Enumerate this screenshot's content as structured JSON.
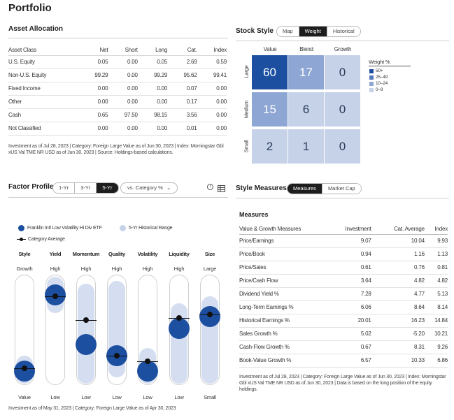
{
  "page_title": "Portfolio",
  "asset_allocation": {
    "title": "Asset Allocation",
    "headers": [
      "Asset Class",
      "Net",
      "Short",
      "Long",
      "Cat.",
      "Index"
    ],
    "rows": [
      [
        "U.S. Equity",
        "0.05",
        "0.00",
        "0.05",
        "2.69",
        "0.59"
      ],
      [
        "Non-U.S. Equity",
        "99.29",
        "0.00",
        "99.29",
        "95.62",
        "99.41"
      ],
      [
        "Fixed Income",
        "0.00",
        "0.00",
        "0.00",
        "0.07",
        "0.00"
      ],
      [
        "Other",
        "0.00",
        "0.00",
        "0.00",
        "0.17",
        "0.00"
      ],
      [
        "Cash",
        "0.65",
        "97.50",
        "98.15",
        "3.56",
        "0.00"
      ],
      [
        "Not Classified",
        "0.00",
        "0.00",
        "0.00",
        "0.01",
        "0.00"
      ]
    ],
    "footnote": "Investment as of Jul 28, 2023 | Category: Foreign Large Value as of Jun 30, 2023 | Index: Morningstar Gbl xUS Val TME NR USD as of Jun 30, 2023 | Source: Holdings-based calculations."
  },
  "stock_style": {
    "title": "Stock Style",
    "tabs": [
      "Map",
      "Weight",
      "Historical"
    ],
    "active_tab": "Weight",
    "columns": [
      "Value",
      "Blend",
      "Growth"
    ],
    "rows": [
      "Large",
      "Medium",
      "Small"
    ],
    "values": [
      [
        "60",
        "17",
        "0"
      ],
      [
        "15",
        "6",
        "0"
      ],
      [
        "2",
        "1",
        "0"
      ]
    ],
    "legend_title": "Weight %",
    "legend": [
      {
        "label": "50+",
        "color": "#1d4fa0"
      },
      {
        "label": "25–49",
        "color": "#5679bc"
      },
      {
        "label": "10–24",
        "color": "#8ea6d3"
      },
      {
        "label": "0–9",
        "color": "#c5d2e8"
      }
    ],
    "cell_colors": [
      [
        "#1d4fa0",
        "#8ea6d3",
        "#c5d2e8"
      ],
      [
        "#8ea6d3",
        "#c5d2e8",
        "#c5d2e8"
      ],
      [
        "#c5d2e8",
        "#c5d2e8",
        "#c5d2e8"
      ]
    ]
  },
  "factor_profile": {
    "title": "Factor Profile",
    "periods": [
      "1-Yr",
      "3-Yr",
      "5-Yr"
    ],
    "active_period": "5-Yr",
    "comparison": "vs. Category %",
    "legend": {
      "fund": "Franklin Intl Low Volatility Hi Div ETF",
      "range": "5-Yr Historical Range",
      "category": "Category Average"
    },
    "factors": [
      {
        "name": "Style",
        "top": "Growth",
        "bottom": "Value",
        "fund": 0.05,
        "cat": 0.08,
        "range": [
          0.0,
          0.12
        ]
      },
      {
        "name": "Yield",
        "top": "High",
        "bottom": "Low",
        "fund": 0.9,
        "cat": 0.88,
        "range": [
          0.8,
          1.0
        ]
      },
      {
        "name": "Momentum",
        "top": "High",
        "bottom": "Low",
        "fund": 0.34,
        "cat": 0.62,
        "range": [
          0.0,
          0.92
        ]
      },
      {
        "name": "Quality",
        "top": "High",
        "bottom": "Low",
        "fund": 0.22,
        "cat": 0.22,
        "range": [
          0.08,
          0.95
        ]
      },
      {
        "name": "Volatility",
        "top": "High",
        "bottom": "Low",
        "fund": 0.05,
        "cat": 0.16,
        "range": [
          0.0,
          0.2
        ]
      },
      {
        "name": "Liquidity",
        "top": "High",
        "bottom": "Low",
        "fund": 0.52,
        "cat": 0.64,
        "range": [
          0.0,
          0.7
        ]
      },
      {
        "name": "Size",
        "top": "Large",
        "bottom": "Small",
        "fund": 0.66,
        "cat": 0.68,
        "range": [
          0.0,
          0.78
        ]
      }
    ],
    "footnote": "Investment as of May 31, 2023 | Category: Foreign Large Value as of Apr 30, 2023"
  },
  "style_measures": {
    "title": "Style Measures",
    "tabs": [
      "Measures",
      "Market Cap"
    ],
    "active_tab": "Measures",
    "subtitle": "Measures",
    "headers": [
      "Value & Growth Measures",
      "Investment",
      "Cat. Average",
      "Index"
    ],
    "rows": [
      [
        "Price/Earnings",
        "9.07",
        "10.04",
        "9.93"
      ],
      [
        "Price/Book",
        "0.94",
        "1.16",
        "1.13"
      ],
      [
        "Price/Sales",
        "0.61",
        "0.76",
        "0.81"
      ],
      [
        "Price/Cash Flow",
        "3.64",
        "4.82",
        "4.82"
      ],
      [
        "Dividend Yield %",
        "7.28",
        "4.77",
        "5.13"
      ],
      [
        "Long-Term Earnings %",
        "6.06",
        "8.64",
        "8.14"
      ],
      [
        "Historical Earnings %",
        "20.01",
        "16.23",
        "14.84"
      ],
      [
        "Sales Growth %",
        "5.02",
        "-5.20",
        "10.21"
      ],
      [
        "Cash-Flow Growth %",
        "0.67",
        "8.31",
        "9.26"
      ],
      [
        "Book-Value Growth %",
        "6.57",
        "10.33",
        "6.86"
      ]
    ],
    "footnote": "Investment as of Jul 28, 2023 | Category: Foreign Large Value as of Jun 30, 2023 | Index: Morningstar Gbl xUS Val TME NR USD as of Jun 30, 2023 | Data is based on the long position of the equity holdings."
  }
}
